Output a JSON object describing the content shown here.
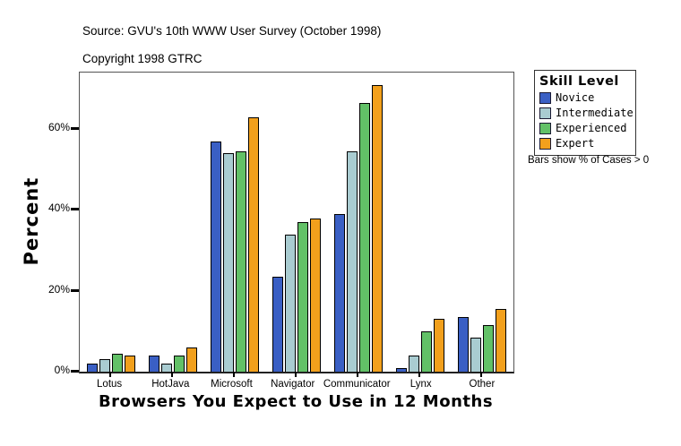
{
  "header": {
    "source": "Source: GVU's 10th WWW User Survey (October 1998)",
    "copyright": "Copyright 1998 GTRC"
  },
  "legend": {
    "title": "Skill Level",
    "note": "Bars show % of Cases > 0"
  },
  "chart_data": {
    "type": "bar",
    "title": "Browsers You Expect to Use in 12 Months",
    "xlabel": "Browsers You Expect to Use in 12 Months",
    "ylabel": "Percent",
    "categories": [
      "Lotus",
      "HotJava",
      "Microsoft",
      "Navigator",
      "Communicator",
      "Lynx",
      "Other"
    ],
    "series": [
      {
        "name": "Novice",
        "color": "#3A5FC4",
        "values": [
          2,
          4,
          57,
          23.5,
          39,
          1,
          13.5
        ]
      },
      {
        "name": "Intermediate",
        "color": "#A9CCD1",
        "values": [
          3,
          2,
          54,
          34,
          54.5,
          4,
          8.5
        ]
      },
      {
        "name": "Experienced",
        "color": "#62C167",
        "values": [
          4.5,
          4,
          54.5,
          37,
          66.5,
          10,
          11.5
        ]
      },
      {
        "name": "Expert",
        "color": "#F2A01C",
        "values": [
          4,
          6,
          63,
          38,
          71,
          13,
          15.5
        ]
      }
    ],
    "ylim": [
      0,
      74
    ],
    "yticks": [
      {
        "value": 0,
        "label": "0%"
      },
      {
        "value": 20,
        "label": "20%"
      },
      {
        "value": 40,
        "label": "40%"
      },
      {
        "value": 60,
        "label": "60%"
      }
    ],
    "grid": false,
    "legend_position": "right",
    "legend_title": "Skill Level"
  }
}
